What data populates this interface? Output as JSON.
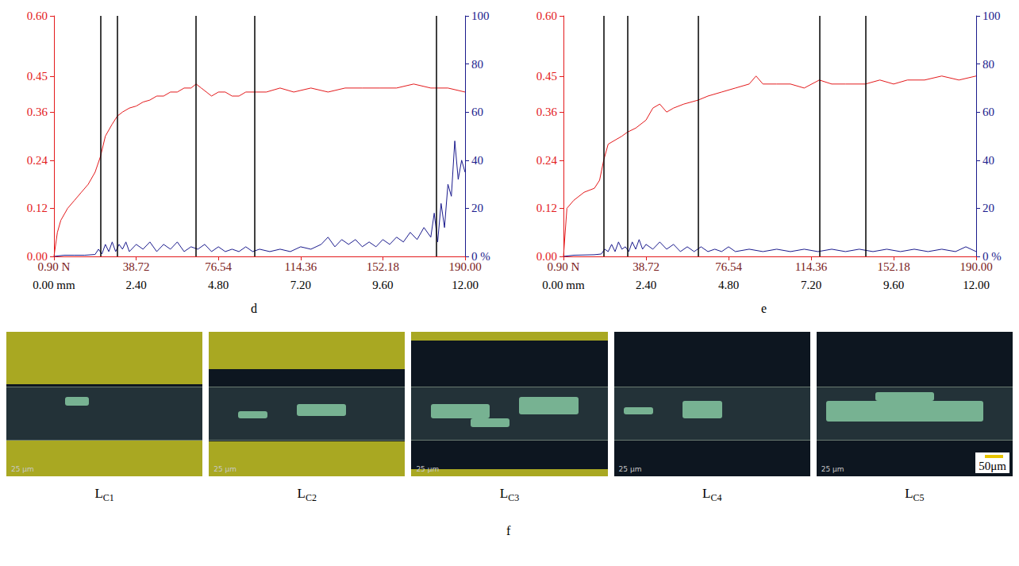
{
  "chart_data": [
    {
      "type": "line",
      "panel": "d",
      "xlim": [
        0,
        12
      ],
      "xticks": [
        {
          "value": 0,
          "label": "0.00 mm"
        },
        {
          "value": 2.4,
          "label": "2.40"
        },
        {
          "value": 4.8,
          "label": "4.80"
        },
        {
          "value": 7.2,
          "label": "7.20"
        },
        {
          "value": 9.6,
          "label": "9.60"
        },
        {
          "value": 12,
          "label": "12.00"
        }
      ],
      "x2lim": [
        0.9,
        190
      ],
      "x2ticks": [
        {
          "value": 0.9,
          "label": "0.90 N"
        },
        38.72,
        76.54,
        114.36,
        152.18,
        {
          "value": 190,
          "label": "190.00"
        }
      ],
      "ylim": [
        0,
        0.6
      ],
      "yticks": [
        {
          "value": 0,
          "label": "0.00"
        },
        0.12,
        0.24,
        0.36,
        0.45,
        {
          "value": 0.6,
          "label": "0.60"
        }
      ],
      "y2lim": [
        0,
        100
      ],
      "y2ticks": [
        {
          "value": 0,
          "label": "0 %"
        },
        20,
        40,
        60,
        80,
        100
      ],
      "grid": false,
      "critical_positions": [
        1.36,
        1.85,
        4.15,
        5.86,
        11.17
      ],
      "series": [
        {
          "color": "#e31a1c",
          "x": [
            0,
            0.1,
            0.2,
            0.4,
            0.6,
            0.8,
            1.0,
            1.2,
            1.36,
            1.5,
            1.7,
            1.85,
            2.0,
            2.2,
            2.4,
            2.6,
            2.8,
            3.0,
            3.2,
            3.4,
            3.6,
            3.8,
            4.0,
            4.15,
            4.3,
            4.45,
            4.6,
            4.8,
            5.0,
            5.2,
            5.4,
            5.6,
            5.86,
            6.2,
            6.6,
            7.0,
            7.5,
            8.0,
            8.5,
            9.0,
            9.5,
            10.0,
            10.5,
            11.0,
            11.5,
            12.0
          ],
          "values": [
            0.0,
            0.06,
            0.09,
            0.12,
            0.14,
            0.16,
            0.18,
            0.21,
            0.25,
            0.3,
            0.33,
            0.35,
            0.36,
            0.37,
            0.375,
            0.385,
            0.39,
            0.4,
            0.4,
            0.41,
            0.41,
            0.42,
            0.42,
            0.43,
            0.42,
            0.41,
            0.4,
            0.41,
            0.41,
            0.4,
            0.4,
            0.41,
            0.41,
            0.41,
            0.42,
            0.41,
            0.42,
            0.41,
            0.42,
            0.42,
            0.42,
            0.42,
            0.43,
            0.42,
            0.42,
            0.41
          ]
        },
        {
          "color": "#1a1a8c",
          "axis": "y2",
          "x": [
            0,
            0.3,
            0.6,
            0.9,
            1.2,
            1.3,
            1.4,
            1.5,
            1.6,
            1.7,
            1.8,
            1.9,
            2.0,
            2.1,
            2.2,
            2.4,
            2.6,
            2.8,
            3.0,
            3.2,
            3.4,
            3.6,
            3.8,
            4.0,
            4.2,
            4.4,
            4.6,
            4.8,
            5.0,
            5.2,
            5.4,
            5.6,
            5.8,
            6.0,
            6.3,
            6.6,
            6.9,
            7.2,
            7.5,
            7.8,
            8.0,
            8.2,
            8.4,
            8.6,
            8.8,
            9.0,
            9.2,
            9.4,
            9.6,
            9.8,
            10.0,
            10.2,
            10.4,
            10.6,
            10.8,
            11.0,
            11.1,
            11.2,
            11.3,
            11.4,
            11.5,
            11.6,
            11.7,
            11.8,
            11.9,
            12.0
          ],
          "values": [
            0,
            0.5,
            0.5,
            0.5,
            0.8,
            3,
            1,
            5,
            2,
            6,
            2,
            5,
            3,
            6,
            2,
            5,
            3,
            6,
            2,
            5,
            3,
            6,
            2,
            4,
            3,
            5,
            2,
            4,
            2,
            3,
            2,
            4,
            2,
            3,
            2,
            3,
            2,
            4,
            3,
            5,
            8,
            4,
            7,
            5,
            7,
            4,
            6,
            4,
            7,
            5,
            8,
            6,
            10,
            7,
            12,
            8,
            18,
            6,
            22,
            12,
            30,
            25,
            48,
            32,
            40,
            35
          ]
        }
      ]
    },
    {
      "type": "line",
      "panel": "e",
      "xlim": [
        0,
        12
      ],
      "xticks": [
        {
          "value": 0,
          "label": "0.00 mm"
        },
        {
          "value": 2.4,
          "label": "2.40"
        },
        {
          "value": 4.8,
          "label": "4.80"
        },
        {
          "value": 7.2,
          "label": "7.20"
        },
        {
          "value": 9.6,
          "label": "9.60"
        },
        {
          "value": 12,
          "label": "12.00"
        }
      ],
      "x2lim": [
        0.9,
        190
      ],
      "x2ticks": [
        {
          "value": 0.9,
          "label": "0.90 N"
        },
        38.72,
        76.54,
        114.36,
        152.18,
        {
          "value": 190,
          "label": "190.00"
        }
      ],
      "ylim": [
        0,
        0.6
      ],
      "yticks": [
        {
          "value": 0,
          "label": "0.00"
        },
        0.12,
        0.24,
        0.36,
        0.45,
        {
          "value": 0.6,
          "label": "0.60"
        }
      ],
      "y2lim": [
        0,
        100
      ],
      "y2ticks": [
        {
          "value": 0,
          "label": "0 %"
        },
        20,
        40,
        60,
        80,
        100
      ],
      "grid": false,
      "critical_positions": [
        1.17,
        1.86,
        3.92,
        7.44,
        8.78
      ],
      "series": [
        {
          "color": "#e31a1c",
          "x": [
            0,
            0.1,
            0.3,
            0.6,
            0.9,
            1.05,
            1.17,
            1.3,
            1.5,
            1.7,
            1.86,
            2.1,
            2.4,
            2.6,
            2.8,
            3.0,
            3.2,
            3.5,
            3.92,
            4.2,
            4.6,
            5.0,
            5.4,
            5.6,
            5.8,
            6.2,
            6.6,
            7.0,
            7.44,
            7.8,
            8.2,
            8.78,
            9.2,
            9.6,
            10.0,
            10.5,
            11.0,
            11.5,
            12.0
          ],
          "values": [
            0.0,
            0.12,
            0.14,
            0.16,
            0.17,
            0.19,
            0.24,
            0.28,
            0.29,
            0.3,
            0.31,
            0.32,
            0.34,
            0.37,
            0.38,
            0.36,
            0.37,
            0.38,
            0.39,
            0.4,
            0.41,
            0.42,
            0.43,
            0.45,
            0.43,
            0.43,
            0.43,
            0.42,
            0.44,
            0.43,
            0.43,
            0.43,
            0.44,
            0.43,
            0.44,
            0.44,
            0.45,
            0.44,
            0.45
          ]
        },
        {
          "color": "#1a1a8c",
          "axis": "y2",
          "x": [
            0,
            0.3,
            0.6,
            0.9,
            1.1,
            1.2,
            1.3,
            1.4,
            1.5,
            1.6,
            1.7,
            1.8,
            1.9,
            2.0,
            2.1,
            2.2,
            2.3,
            2.4,
            2.6,
            2.8,
            3.0,
            3.2,
            3.4,
            3.6,
            3.8,
            4.0,
            4.2,
            4.4,
            4.6,
            4.8,
            5.0,
            5.4,
            5.8,
            6.2,
            6.6,
            7.0,
            7.4,
            7.8,
            8.2,
            8.6,
            9.0,
            9.4,
            9.8,
            10.2,
            10.6,
            11.0,
            11.4,
            11.7,
            12.0
          ],
          "values": [
            0,
            0.5,
            0.6,
            0.7,
            1,
            3,
            2,
            5,
            2,
            6,
            3,
            4,
            2,
            6,
            3,
            7,
            3,
            5,
            3,
            6,
            3,
            5,
            2,
            4,
            2,
            4,
            2,
            3,
            2,
            4,
            2,
            3,
            2,
            3,
            2,
            3,
            2,
            3,
            2,
            3,
            2,
            3,
            2,
            3,
            2,
            3,
            2,
            4,
            2
          ]
        }
      ]
    }
  ],
  "images": {
    "panel": "f",
    "scale_label": "25 μm",
    "scale_bar": "50μm",
    "items": [
      {
        "caption": "L",
        "caption_sub": "C1"
      },
      {
        "caption": "L",
        "caption_sub": "C2"
      },
      {
        "caption": "L",
        "caption_sub": "C3"
      },
      {
        "caption": "L",
        "caption_sub": "C4"
      },
      {
        "caption": "L",
        "caption_sub": "C5"
      }
    ]
  }
}
